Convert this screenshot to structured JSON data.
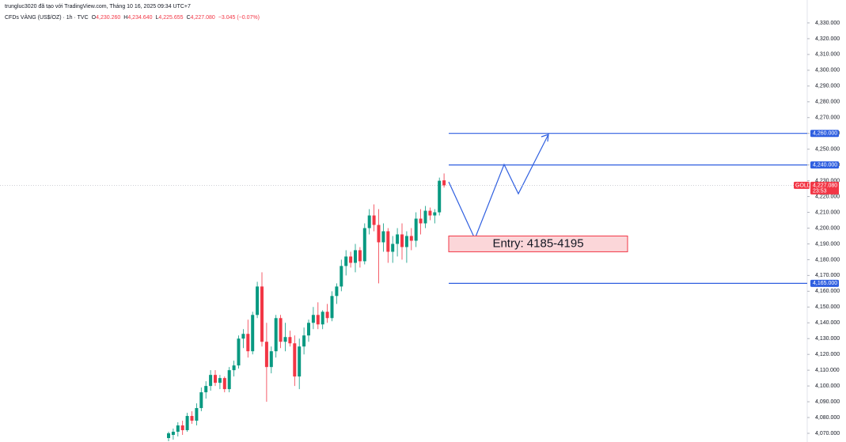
{
  "header": {
    "author_line": "trungluc3020 đã tạo với TradingView.com, Tháng 10 16, 2025 09:34 UTC+7",
    "symbol": "CFDs VÀNG (US$/OZ) · 1h · TVC",
    "ohlc": [
      {
        "key": "O",
        "value": "4,230.260"
      },
      {
        "key": "H",
        "value": "4,234.640"
      },
      {
        "key": "L",
        "value": "4,225.655"
      },
      {
        "key": "C",
        "value": "4,227.080"
      }
    ],
    "change": "−3.045 (−0.07%)"
  },
  "chart_data": {
    "type": "candlestick",
    "up_color": "#089981",
    "down_color": "#f23645",
    "open": [
      4067,
      4069,
      4071,
      4075,
      4072,
      4081,
      4078,
      4086,
      4096,
      4100,
      4107,
      4102,
      4105,
      4098,
      4110,
      4113,
      4130,
      4133,
      4122,
      4145,
      4163,
      4128,
      4112,
      4122,
      4143,
      4128,
      4131,
      4127,
      4106,
      4125,
      4132,
      4140,
      4145,
      4139,
      4147,
      4143,
      4157,
      4163,
      4176,
      4182,
      4178,
      4186,
      4179,
      4200,
      4208,
      4202,
      4191,
      4198,
      4185,
      4190,
      4196,
      4188,
      4195,
      4192,
      4206,
      4203,
      4211,
      4208,
      4210,
      4230.26
    ],
    "high": [
      4071,
      4073,
      4077,
      4078,
      4083,
      4084,
      4089,
      4099,
      4103,
      4110,
      4110,
      4107,
      4106,
      4112,
      4116,
      4132,
      4136,
      4142,
      4147,
      4166,
      4172,
      4140,
      4125,
      4145,
      4145,
      4140,
      4135,
      4132,
      4130,
      4137,
      4142,
      4150,
      4153,
      4148,
      4152,
      4160,
      4165,
      4180,
      4186,
      4185,
      4190,
      4188,
      4203,
      4212,
      4215,
      4212,
      4203,
      4200,
      4195,
      4200,
      4203,
      4198,
      4200,
      4210,
      4212,
      4214,
      4213,
      4212,
      4232,
      4234.64
    ],
    "low": [
      4065,
      4066,
      4068,
      4069,
      4071,
      4076,
      4075,
      4084,
      4092,
      4097,
      4100,
      4098,
      4096,
      4096,
      4106,
      4111,
      4124,
      4118,
      4120,
      4143,
      4125,
      4090,
      4108,
      4118,
      4124,
      4122,
      4125,
      4100,
      4098,
      4120,
      4128,
      4136,
      4136,
      4136,
      4140,
      4141,
      4152,
      4160,
      4170,
      4175,
      4172,
      4175,
      4177,
      4196,
      4198,
      4165,
      4185,
      4178,
      4178,
      4182,
      4180,
      4178,
      4186,
      4188,
      4196,
      4200,
      4205,
      4203,
      4208,
      4225.655
    ],
    "close": [
      4070,
      4071,
      4075,
      4072,
      4081,
      4078,
      4086,
      4096,
      4100,
      4107,
      4102,
      4105,
      4098,
      4110,
      4113,
      4130,
      4133,
      4122,
      4145,
      4163,
      4128,
      4112,
      4122,
      4143,
      4128,
      4131,
      4127,
      4106,
      4125,
      4132,
      4140,
      4145,
      4139,
      4147,
      4143,
      4157,
      4163,
      4176,
      4182,
      4178,
      4186,
      4179,
      4200,
      4208,
      4202,
      4191,
      4198,
      4185,
      4190,
      4196,
      4188,
      4195,
      4192,
      4206,
      4203,
      4211,
      4208,
      4210,
      4230,
      4227.08
    ],
    "ylim": [
      4064.5,
      4344.5
    ],
    "yticks": [
      {
        "value": 4070,
        "label": "4,070.000"
      },
      {
        "value": 4080,
        "label": "4,080.000"
      },
      {
        "value": 4090,
        "label": "4,090.000"
      },
      {
        "value": 4100,
        "label": "4,100.000"
      },
      {
        "value": 4110,
        "label": "4,110.000"
      },
      {
        "value": 4120,
        "label": "4,120.000"
      },
      {
        "value": 4130,
        "label": "4,130.000"
      },
      {
        "value": 4140,
        "label": "4,140.000"
      },
      {
        "value": 4150,
        "label": "4,150.000"
      },
      {
        "value": 4160,
        "label": "4,160.000"
      },
      {
        "value": 4170,
        "label": "4,170.000"
      },
      {
        "value": 4180,
        "label": "4,180.000"
      },
      {
        "value": 4190,
        "label": "4,190.000"
      },
      {
        "value": 4200,
        "label": "4,200.000"
      },
      {
        "value": 4210,
        "label": "4,210.000"
      },
      {
        "value": 4220,
        "label": "4,220.000"
      },
      {
        "value": 4230,
        "label": "4,230.000"
      },
      {
        "value": 4240,
        "label": "4,240.000"
      },
      {
        "value": 4250,
        "label": "4,250.000"
      },
      {
        "value": 4260,
        "label": "4,260.000"
      },
      {
        "value": 4270,
        "label": "4,270.000"
      },
      {
        "value": 4280,
        "label": "4,280.000"
      },
      {
        "value": 4290,
        "label": "4,290.000"
      },
      {
        "value": 4300,
        "label": "4,300.000"
      },
      {
        "value": 4310,
        "label": "4,310.000"
      },
      {
        "value": 4320,
        "label": "4,320.000"
      },
      {
        "value": 4330,
        "label": "4,330.000"
      }
    ],
    "levels": [
      {
        "value": 4260,
        "label": "4,260.000"
      },
      {
        "value": 4240,
        "label": "4,240.000"
      },
      {
        "value": 4165,
        "label": "4,165.000"
      }
    ],
    "level_color": "#2f5fe0",
    "last_price": {
      "value": 4227.08,
      "label": "4,227.080",
      "symbol": "GOLD",
      "countdown": "23:53"
    },
    "entry_zone": {
      "low": 4185,
      "high": 4195,
      "label": "Entry: 4185-4195"
    }
  }
}
